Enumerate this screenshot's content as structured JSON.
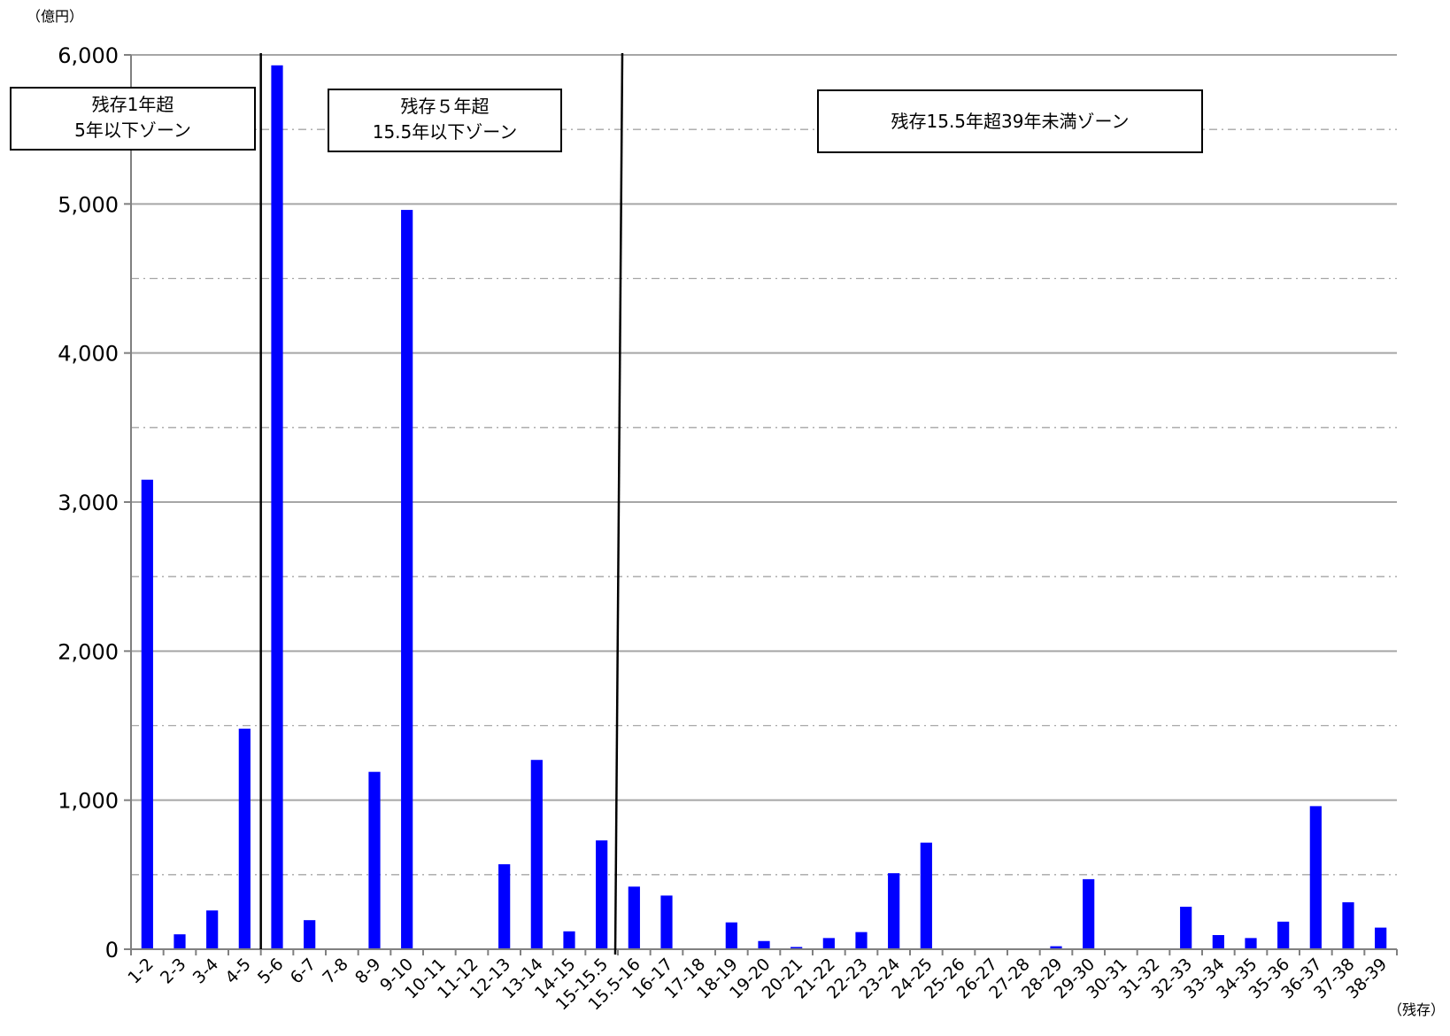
{
  "chart_data": {
    "type": "bar",
    "ylabel": "（億円）",
    "xlabel": "（残存）",
    "ylim": [
      0,
      6000
    ],
    "yticks": [
      0,
      1000,
      2000,
      3000,
      4000,
      5000,
      6000
    ],
    "ytick_labels": [
      "0",
      "1,000",
      "2,000",
      "3,000",
      "4,000",
      "5,000",
      "6,000"
    ],
    "grid": "solid at major ticks, dash-dot at midpoints",
    "bar_color": "#0000ff",
    "categories": [
      "1-2",
      "2-3",
      "3-4",
      "4-5",
      "5-6",
      "6-7",
      "7-8",
      "8-9",
      "9-10",
      "10-11",
      "11-12",
      "12-13",
      "13-14",
      "14-15",
      "15-15.5",
      "15.5-16",
      "16-17",
      "17-18",
      "18-19",
      "19-20",
      "20-21",
      "21-22",
      "22-23",
      "23-24",
      "24-25",
      "25-26",
      "26-27",
      "27-28",
      "28-29",
      "29-30",
      "30-31",
      "31-32",
      "32-33",
      "33-34",
      "34-35",
      "35-36",
      "36-37",
      "37-38",
      "38-39"
    ],
    "values": [
      3150,
      100,
      260,
      1480,
      5930,
      195,
      5,
      1190,
      4960,
      0,
      5,
      570,
      1270,
      120,
      730,
      420,
      360,
      0,
      180,
      55,
      15,
      75,
      115,
      510,
      715,
      0,
      0,
      0,
      20,
      470,
      0,
      0,
      285,
      95,
      75,
      185,
      960,
      315,
      145
    ],
    "zones": [
      {
        "lines": [
          "残存1年超",
          "5年以下ゾーン"
        ]
      },
      {
        "lines": [
          "残存５年超",
          "15.5年以下ゾーン"
        ]
      },
      {
        "lines": [
          "残存15.5年超39年未満ゾーン"
        ]
      }
    ]
  }
}
